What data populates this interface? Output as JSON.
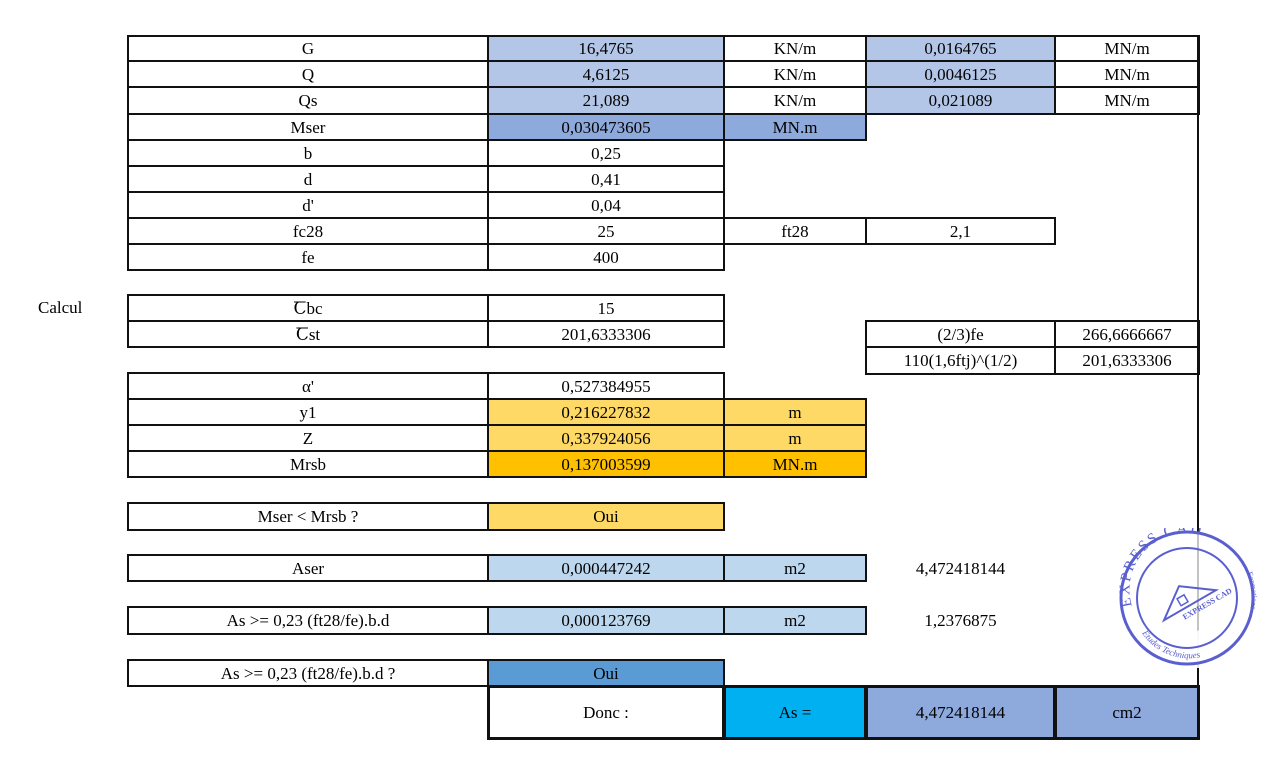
{
  "side_label": "Calcul",
  "colors": {
    "light_blue": "#b4c6e7",
    "mid_blue": "#8ea9db",
    "pale_blue": "#bdd7ee",
    "strong_blue": "#5b9bd5",
    "cyan": "#00b0f0",
    "light_yellow": "#ffd966",
    "orange": "#ffc000",
    "stamp_blue": "#5a5fd0"
  },
  "rows": {
    "G": {
      "label": "G",
      "value": "16,4765",
      "unit": "KN/m",
      "value2": "0,0164765",
      "unit2": "MN/m"
    },
    "Q": {
      "label": "Q",
      "value": "4,6125",
      "unit": "KN/m",
      "value2": "0,0046125",
      "unit2": "MN/m"
    },
    "Qs": {
      "label": "Qs",
      "value": "21,089",
      "unit": "KN/m",
      "value2": "0,021089",
      "unit2": "MN/m"
    },
    "Mser": {
      "label": "Mser",
      "value": "0,030473605",
      "unit": "MN.m"
    },
    "b": {
      "label": "b",
      "value": "0,25"
    },
    "d": {
      "label": "d",
      "value": "0,41"
    },
    "dp": {
      "label": "d'",
      "value": "0,04"
    },
    "fc28": {
      "label": "fc28",
      "value": "25",
      "label2": "ft28",
      "value2": "2,1"
    },
    "fe": {
      "label": "fe",
      "value": "400"
    },
    "sbc": {
      "label": "Ꞇbc",
      "value": "15"
    },
    "sst": {
      "label": "Ꞇst",
      "value": "201,6333306",
      "label2": "(2/3)fe",
      "value2": "266,6666667"
    },
    "sst2": {
      "label2": "110(1,6ftj)^(1/2)",
      "value2": "201,6333306"
    },
    "alpha": {
      "label": "α'",
      "value": "0,527384955"
    },
    "y1": {
      "label": "y1",
      "value": "0,216227832",
      "unit": "m"
    },
    "Z": {
      "label": "Z",
      "value": "0,337924056",
      "unit": "m"
    },
    "Mrsb": {
      "label": "Mrsb",
      "value": "0,137003599",
      "unit": "MN.m"
    },
    "check1": {
      "label": "Mser < Mrsb ?",
      "value": "Oui"
    },
    "Aser": {
      "label": "Aser",
      "value": "0,000447242",
      "unit": "m2",
      "extra": "4,472418144"
    },
    "Asmin": {
      "label": "As >= 0,23 (ft28/fe).b.d",
      "value": "0,000123769",
      "unit": "m2",
      "extra": "1,2376875"
    },
    "check2": {
      "label": "As >= 0,23 (ft28/fe).b.d ?",
      "value": "Oui"
    },
    "result": {
      "label": "Donc :",
      "name": "As =",
      "value": "4,472418144",
      "unit": "cm2"
    }
  },
  "stamp": {
    "outer_top": "EXPRESS CAD",
    "inner": "EXPRESS CAD",
    "bottom": "Etudes Techniques",
    "right": "Formations"
  }
}
